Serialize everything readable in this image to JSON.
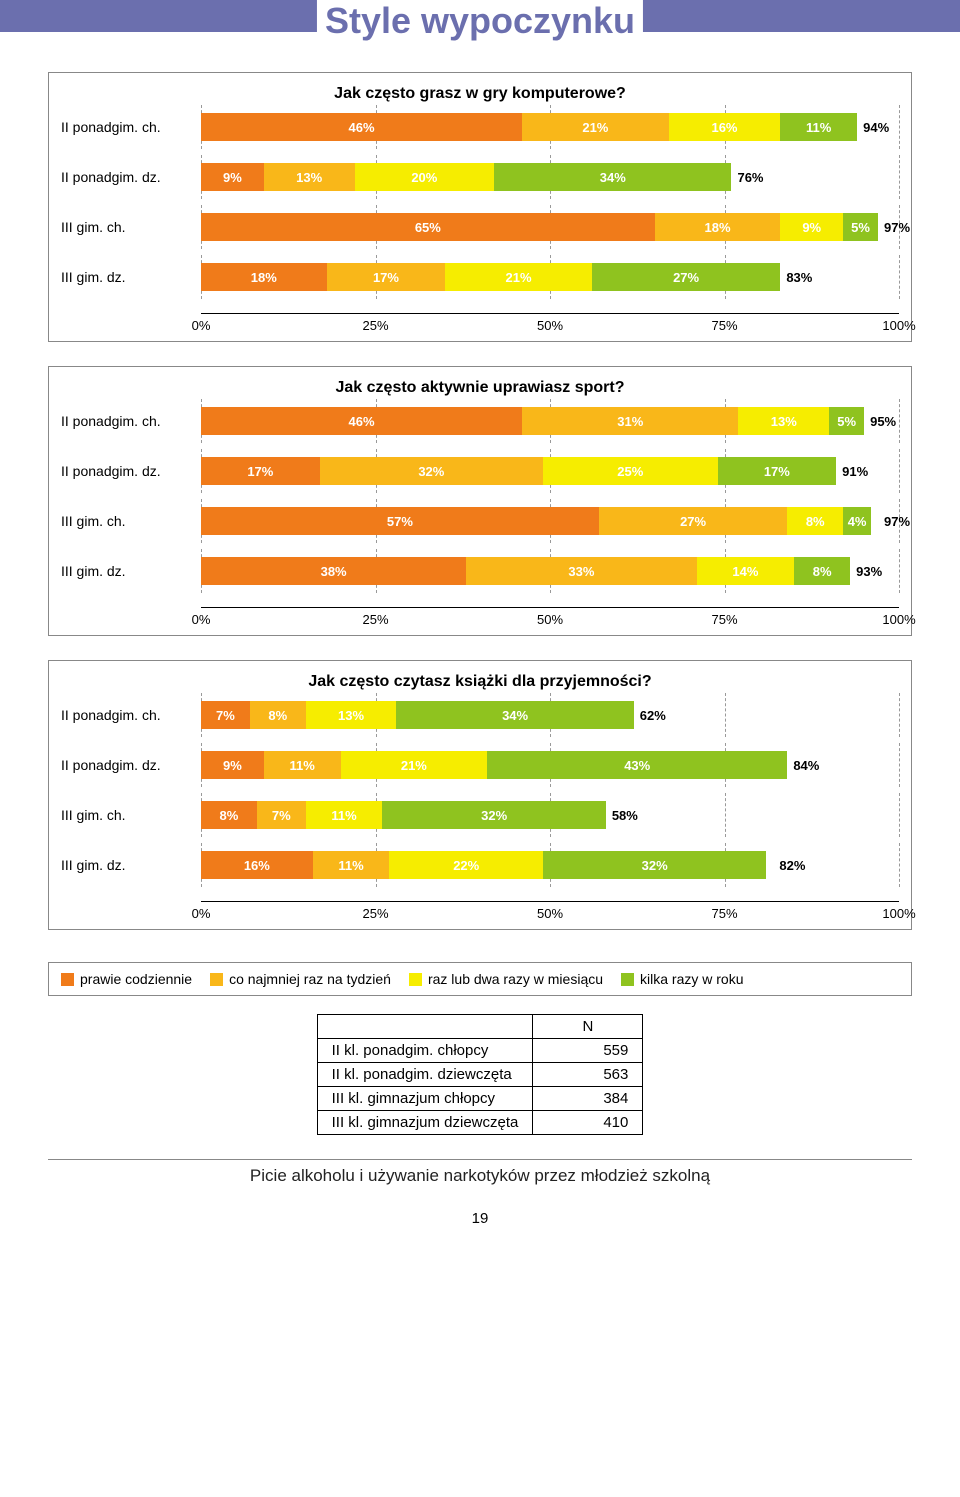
{
  "page": {
    "title": "Style wypoczynku",
    "footer": "Picie alkoholu i używanie narkotyków przez młodzież szkolną",
    "page_number": "19"
  },
  "colors": {
    "series": [
      "#f07b1a",
      "#f9b719",
      "#f6ed00",
      "#8fc31f"
    ],
    "title_bar": "#6b6fae",
    "text_white": "#ffffff",
    "text_black": "#000000"
  },
  "x_axis": {
    "min": 0,
    "max": 100,
    "step": 25,
    "ticks": [
      "0%",
      "25%",
      "50%",
      "75%",
      "100%"
    ]
  },
  "legend": [
    "prawie codziennie",
    "co najmniej raz na tydzień",
    "raz lub dwa razy w miesiącu",
    "kilka razy w roku"
  ],
  "charts": [
    {
      "title": "Jak często grasz w gry komputerowe?",
      "rows": [
        {
          "label": "II ponadgim. ch.",
          "values": [
            46,
            21,
            16,
            11
          ],
          "total": 94
        },
        {
          "label": "II ponadgim. dz.",
          "values": [
            9,
            13,
            20,
            34
          ],
          "total": 76
        },
        {
          "label": "III gim. ch.",
          "values": [
            65,
            18,
            9,
            5
          ],
          "total": 97
        },
        {
          "label": "III gim. dz.",
          "values": [
            18,
            17,
            21,
            27
          ],
          "total": 83
        }
      ]
    },
    {
      "title": "Jak często aktywnie uprawiasz sport?",
      "rows": [
        {
          "label": "II ponadgim. ch.",
          "values": [
            46,
            31,
            13,
            5
          ],
          "total": 95
        },
        {
          "label": "II ponadgim. dz.",
          "values": [
            17,
            32,
            25,
            17
          ],
          "total": 91
        },
        {
          "label": "III gim. ch.",
          "values": [
            57,
            27,
            8,
            4
          ],
          "total": 97
        },
        {
          "label": "III gim. dz.",
          "values": [
            38,
            33,
            14,
            8
          ],
          "total": 93
        }
      ]
    },
    {
      "title": "Jak często czytasz książki dla przyjemności?",
      "rows": [
        {
          "label": "II ponadgim. ch.",
          "values": [
            7,
            8,
            13,
            34
          ],
          "total": 62
        },
        {
          "label": "II ponadgim. dz.",
          "values": [
            9,
            11,
            21,
            43
          ],
          "total": 84
        },
        {
          "label": "III gim. ch.",
          "values": [
            8,
            7,
            11,
            32
          ],
          "total": 58
        },
        {
          "label": "III gim. dz.",
          "values": [
            16,
            11,
            22,
            32
          ],
          "total": 82
        }
      ]
    }
  ],
  "table": {
    "header": [
      "",
      "N"
    ],
    "rows": [
      [
        "II kl. ponadgim. chłopcy",
        "559"
      ],
      [
        "II kl. ponadgim. dziewczęta",
        "563"
      ],
      [
        "III kl. gimnazjum chłopcy",
        "384"
      ],
      [
        "III kl. gimnazjum dziewczęta",
        "410"
      ]
    ]
  }
}
